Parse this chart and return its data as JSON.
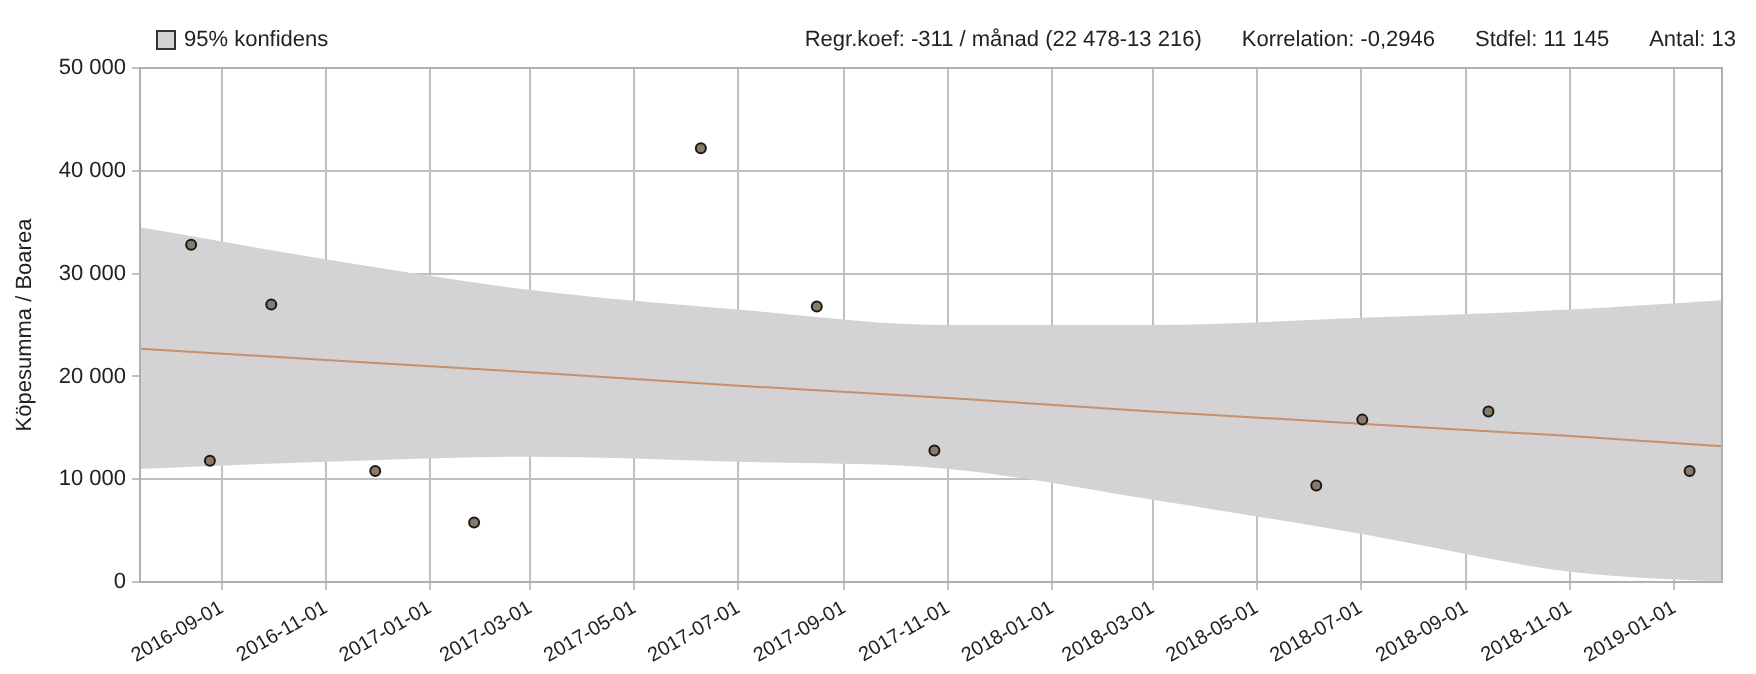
{
  "chart_data": {
    "type": "scatter",
    "ylabel": "Köpesumma / Boarea",
    "annotations": [
      "Regr.koef: -311 / månad (22 478-13 216)",
      "Korrelation: -0,2946",
      "Stdfel: 11 145",
      "Antal: 13"
    ],
    "xlim": [
      "2016-07-15",
      "2019-01-29"
    ],
    "xticks": [
      "2016-09-01",
      "2016-11-01",
      "2017-01-01",
      "2017-03-01",
      "2017-05-01",
      "2017-07-01",
      "2017-09-01",
      "2017-11-01",
      "2018-01-01",
      "2018-03-01",
      "2018-05-01",
      "2018-07-01",
      "2018-09-01",
      "2018-11-01",
      "2019-01-01"
    ],
    "ylim": [
      0,
      50000
    ],
    "yticks": [
      {
        "value": 0,
        "label": "0"
      },
      {
        "value": 10000,
        "label": "10 000"
      },
      {
        "value": 20000,
        "label": "20 000"
      },
      {
        "value": 30000,
        "label": "30 000"
      },
      {
        "value": 40000,
        "label": "40 000"
      },
      {
        "value": 50000,
        "label": "50 000"
      }
    ],
    "grid": true,
    "legend": "top left",
    "series": [
      {
        "marker": "circle",
        "color": "#8a7a6a",
        "x": [
          "2016-08-14",
          "2016-08-25",
          "2016-09-30",
          "2016-11-30",
          "2017-01-27",
          "2017-06-09",
          "2017-08-16",
          "2017-10-24",
          "2018-06-05",
          "2018-07-02",
          "2018-09-14",
          "2019-01-10"
        ],
        "values": [
          32800,
          11800,
          27000,
          10800,
          5800,
          42200,
          26800,
          12800,
          9400,
          15800,
          16600,
          10800
        ]
      },
      {
        "type": "line",
        "marker": "none",
        "name": "95% konfidens",
        "color": "#c8906a",
        "x": [
          "2016-07-15",
          "2016-11-01",
          "2017-03-01",
          "2017-07-01",
          "2017-11-01",
          "2018-03-01",
          "2018-07-01",
          "2018-11-01",
          "2019-01-29"
        ],
        "values": [
          22700,
          21600,
          20400,
          19100,
          17900,
          16600,
          15400,
          14200,
          13200
        ],
        "lower": [
          11000,
          11700,
          12200,
          11700,
          11000,
          8000,
          4700,
          1000,
          0
        ],
        "upper": [
          34500,
          31400,
          28400,
          26500,
          25000,
          25000,
          25700,
          26500,
          27400
        ]
      }
    ]
  }
}
